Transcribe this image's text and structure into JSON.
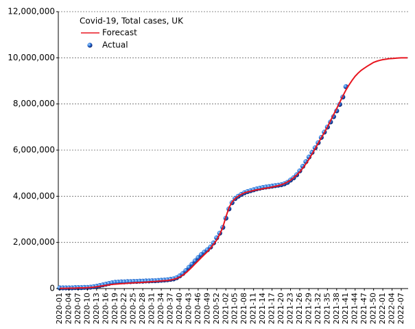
{
  "chart_data": {
    "type": "line",
    "legend_title": "Covid-19, Total cases, UK",
    "legend_position": "upper left",
    "grid": true,
    "categories": [
      "2020-01",
      null,
      null,
      "2020-04",
      null,
      null,
      "2020-07",
      null,
      null,
      "2020-10",
      null,
      null,
      "2020-13",
      null,
      null,
      "2020-16",
      null,
      null,
      "2020-19",
      null,
      null,
      "2020-22",
      null,
      null,
      "2020-25",
      null,
      null,
      "2020-28",
      null,
      null,
      "2020-31",
      null,
      null,
      "2020-34",
      null,
      null,
      "2020-37",
      null,
      null,
      "2020-40",
      null,
      null,
      "2020-43",
      null,
      null,
      "2020-46",
      null,
      null,
      "2020-49",
      null,
      null,
      "2020-52",
      null,
      null,
      "2021-02",
      null,
      null,
      "2021-05",
      null,
      null,
      "2021-08",
      null,
      null,
      "2021-11",
      null,
      null,
      "2021-14",
      null,
      null,
      "2021-17",
      null,
      null,
      "2021-20",
      null,
      null,
      "2021-23",
      null,
      null,
      "2021-26",
      null,
      null,
      "2021-29",
      null,
      null,
      "2021-32",
      null,
      null,
      "2021-35",
      null,
      null,
      "2021-38",
      null,
      null,
      "2021-41",
      null,
      null,
      "2021-44",
      null,
      null,
      "2021-47",
      null,
      null,
      "2021-50",
      null,
      null,
      "2022-01",
      null,
      null,
      "2022-04",
      null,
      null,
      "2022-07",
      null,
      null
    ],
    "ylim": [
      0,
      12000000
    ],
    "yticks": [
      0,
      {
        "value": 2000000,
        "label": "2,000,000"
      },
      {
        "value": 4000000,
        "label": "4,000,000"
      },
      {
        "value": 6000000,
        "label": "6,000,000"
      },
      {
        "value": 8000000,
        "label": "8,000,000"
      },
      {
        "value": 10000000,
        "label": "10,000,000"
      },
      {
        "value": 12000000,
        "label": "12,000,000"
      }
    ],
    "series": [
      {
        "name": "Forecast",
        "type": "line",
        "color": "#e8141e",
        "values": [
          10000,
          10000,
          10000,
          20000,
          20000,
          20000,
          30000,
          30000,
          30000,
          40000,
          50000,
          60000,
          80000,
          100000,
          120000,
          140000,
          160000,
          180000,
          190000,
          200000,
          210000,
          220000,
          230000,
          240000,
          250000,
          260000,
          260000,
          270000,
          280000,
          290000,
          300000,
          310000,
          320000,
          330000,
          340000,
          350000,
          370000,
          400000,
          440000,
          500000,
          580000,
          680000,
          800000,
          930000,
          1070000,
          1200000,
          1340000,
          1470000,
          1600000,
          1750000,
          1920000,
          2100000,
          2350000,
          2650000,
          3100000,
          3500000,
          3750000,
          3900000,
          4000000,
          4080000,
          4150000,
          4190000,
          4220000,
          4250000,
          4280000,
          4300000,
          4330000,
          4350000,
          4370000,
          4400000,
          4430000,
          4460000,
          4500000,
          4550000,
          4620000,
          4700000,
          4800000,
          4920000,
          5050000,
          5220000,
          5400000,
          5600000,
          5830000,
          6060000,
          6300000,
          6530000,
          6760000,
          7000000,
          7270000,
          7540000,
          7800000,
          8070000,
          8340000,
          8600000,
          8820000,
          9020000,
          9200000,
          9340000,
          9460000,
          9550000,
          9640000,
          9720000,
          9800000,
          9850000,
          9890000,
          9920000,
          9940000,
          9960000,
          9970000,
          9980000,
          9990000,
          10000000,
          10000000,
          10000000
        ]
      },
      {
        "name": "Actual",
        "type": "scatter",
        "color": "#1f5fd6",
        "values": [
          30000,
          30000,
          30000,
          30000,
          30000,
          40000,
          40000,
          40000,
          50000,
          50000,
          60000,
          80000,
          100000,
          130000,
          160000,
          190000,
          220000,
          250000,
          270000,
          280000,
          290000,
          290000,
          300000,
          300000,
          310000,
          310000,
          320000,
          320000,
          330000,
          330000,
          340000,
          340000,
          350000,
          360000,
          370000,
          380000,
          400000,
          420000,
          470000,
          550000,
          650000,
          780000,
          920000,
          1060000,
          1200000,
          1340000,
          1470000,
          1580000,
          1680000,
          1800000,
          1980000,
          2200000,
          2400000,
          2650000,
          3050000,
          3450000,
          3720000,
          3900000,
          4000000,
          4080000,
          4150000,
          4200000,
          4240000,
          4280000,
          4320000,
          4350000,
          4380000,
          4400000,
          4420000,
          4440000,
          4460000,
          4480000,
          4500000,
          4540000,
          4600000,
          4700000,
          4800000,
          4930000,
          5100000,
          5300000,
          5500000,
          5700000,
          5900000,
          6100000,
          6320000,
          6550000,
          6780000,
          7000000,
          7220000,
          7450000,
          7700000,
          7980000,
          8300000,
          8750000,
          null,
          null,
          null,
          null,
          null,
          null,
          null,
          null,
          null,
          null,
          null,
          null,
          null,
          null,
          null,
          null,
          null,
          null,
          null,
          null
        ]
      }
    ]
  }
}
